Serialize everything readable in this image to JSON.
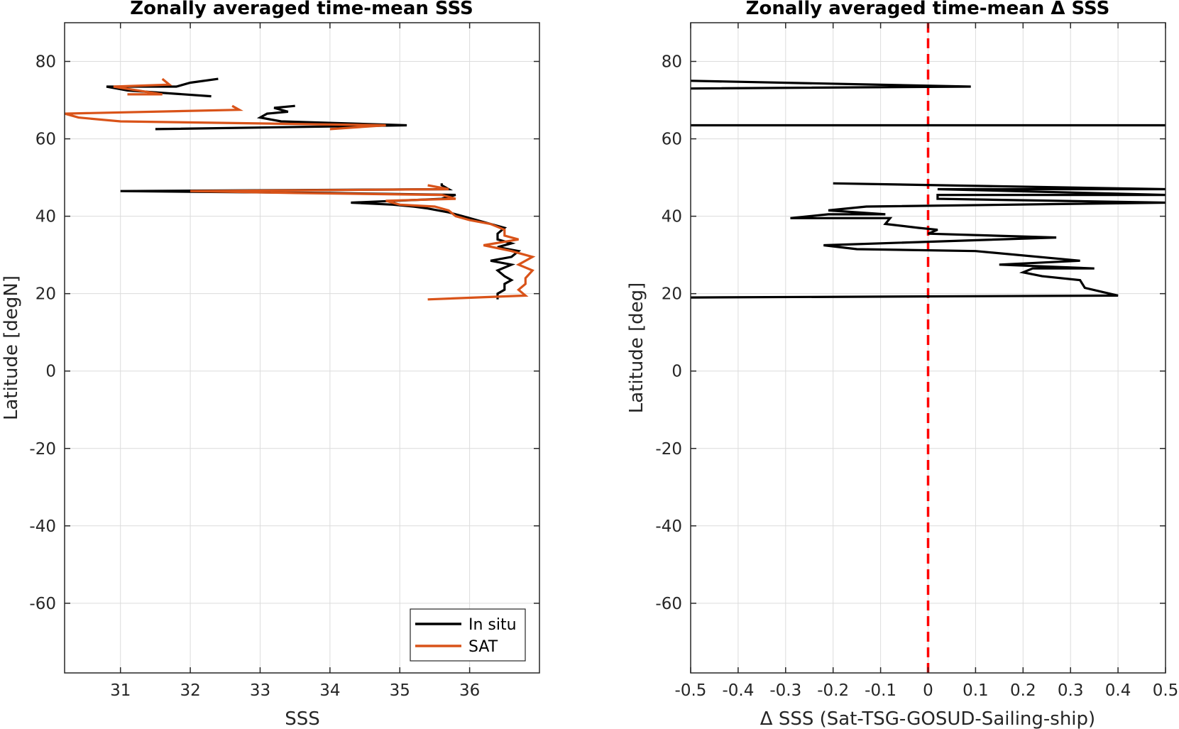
{
  "chart_data": [
    {
      "type": "line",
      "title": "Zonally averaged time-mean SSS",
      "xlabel": "SSS",
      "ylabel": "Latitude [degN]",
      "xlim": [
        30.2,
        37.0
      ],
      "ylim": [
        -78,
        90
      ],
      "xticks": [
        31,
        32,
        33,
        34,
        35,
        36
      ],
      "yticks": [
        -60,
        -40,
        -20,
        0,
        20,
        40,
        60,
        80
      ],
      "grid": true,
      "legend": "bottom-right",
      "series": [
        {
          "name": "In situ",
          "color": "#000000",
          "points": [
            [
              36.4,
              18.5
            ],
            [
              36.4,
              20.0
            ],
            [
              36.5,
              21.0
            ],
            [
              36.5,
              22.5
            ],
            [
              36.6,
              23.5
            ],
            [
              36.5,
              24.5
            ],
            [
              36.4,
              26.0
            ],
            [
              36.6,
              27.5
            ],
            [
              36.3,
              28.5
            ],
            [
              36.6,
              29.5
            ],
            [
              36.7,
              31.0
            ],
            [
              36.4,
              32.0
            ],
            [
              36.6,
              33.0
            ],
            [
              36.4,
              34.0
            ],
            [
              36.4,
              35.5
            ],
            [
              36.5,
              37.0
            ],
            [
              36.3,
              38.0
            ],
            [
              36.1,
              39.0
            ],
            [
              35.9,
              40.0
            ],
            [
              35.7,
              41.0
            ],
            [
              35.4,
              42.0
            ],
            [
              35.2,
              42.5
            ],
            [
              34.9,
              43.0
            ],
            [
              34.3,
              43.5
            ],
            [
              35.6,
              44.5
            ],
            [
              35.8,
              45.5
            ],
            [
              34.0,
              46.0
            ],
            [
              31.0,
              46.5
            ],
            [
              35.7,
              47.0
            ],
            [
              35.6,
              48.0
            ],
            [
              35.6,
              48.5
            ]
          ],
          "segment2": [
            [
              31.5,
              62.5
            ],
            [
              35.1,
              63.5
            ],
            [
              33.3,
              64.5
            ],
            [
              33.0,
              65.5
            ],
            [
              33.1,
              66.5
            ],
            [
              33.4,
              67.0
            ],
            [
              33.2,
              68.0
            ],
            [
              33.5,
              68.5
            ]
          ],
          "segment3": [
            [
              32.3,
              71.0
            ],
            [
              31.1,
              72.5
            ],
            [
              30.8,
              73.5
            ],
            [
              31.8,
              73.5
            ],
            [
              32.0,
              74.5
            ],
            [
              32.4,
              75.5
            ]
          ]
        },
        {
          "name": "SAT",
          "color": "#d95319",
          "points": [
            [
              35.4,
              18.5
            ],
            [
              36.8,
              19.5
            ],
            [
              36.7,
              21.0
            ],
            [
              36.8,
              22.5
            ],
            [
              36.8,
              24.0
            ],
            [
              36.9,
              26.0
            ],
            [
              36.7,
              27.5
            ],
            [
              36.9,
              29.5
            ],
            [
              36.6,
              31.0
            ],
            [
              36.2,
              32.5
            ],
            [
              36.7,
              34.0
            ],
            [
              36.5,
              35.0
            ],
            [
              36.5,
              36.5
            ],
            [
              36.3,
              38.0
            ],
            [
              36.0,
              39.0
            ],
            [
              35.8,
              40.0
            ],
            [
              35.7,
              41.5
            ],
            [
              35.5,
              42.5
            ],
            [
              35.0,
              43.0
            ],
            [
              34.8,
              44.0
            ],
            [
              35.8,
              44.5
            ],
            [
              35.6,
              45.5
            ],
            [
              33.5,
              46.0
            ],
            [
              32.0,
              46.5
            ],
            [
              35.7,
              47.0
            ],
            [
              35.4,
              48.0
            ]
          ],
          "segment2": [
            [
              34.0,
              62.5
            ],
            [
              34.8,
              63.5
            ],
            [
              31.0,
              64.5
            ],
            [
              30.4,
              65.5
            ],
            [
              30.2,
              66.5
            ],
            [
              32.7,
              67.5
            ],
            [
              32.6,
              68.5
            ]
          ],
          "segment3": [
            [
              31.6,
              71.5
            ],
            [
              31.1,
              71.5
            ],
            [
              31.6,
              71.5
            ],
            [
              30.9,
              73.5
            ],
            [
              31.7,
              74.0
            ],
            [
              31.6,
              75.5
            ]
          ]
        }
      ]
    },
    {
      "type": "line",
      "title": "Zonally averaged time-mean Δ SSS",
      "xlabel": "Δ SSS (Sat-TSG-GOSUD-Sailing-ship)",
      "ylabel": "Latitude [deg]",
      "xlim": [
        -0.5,
        0.5
      ],
      "ylim": [
        -78,
        90
      ],
      "xticks": [
        "-0.5",
        "-0.4",
        "-0.3",
        "-0.2",
        "-0.1",
        "0",
        "0.1",
        "0.2",
        "0.3",
        "0.4",
        "0.5"
      ],
      "yticks": [
        -60,
        -40,
        -20,
        0,
        20,
        40,
        60,
        80
      ],
      "grid": true,
      "reference_line": {
        "x": 0,
        "color": "#ff0000",
        "style": "dashed"
      },
      "series": [
        {
          "color": "#000000",
          "points": [
            [
              -0.5,
              19.0
            ],
            [
              0.4,
              19.5
            ],
            [
              0.33,
              21.5
            ],
            [
              0.32,
              23.5
            ],
            [
              0.24,
              24.5
            ],
            [
              0.2,
              25.5
            ],
            [
              0.22,
              26.5
            ],
            [
              0.35,
              26.5
            ],
            [
              0.15,
              27.5
            ],
            [
              0.32,
              28.5
            ],
            [
              0.1,
              31.0
            ],
            [
              -0.15,
              31.5
            ],
            [
              -0.22,
              32.5
            ],
            [
              0.27,
              34.5
            ],
            [
              0.0,
              35.5
            ],
            [
              0.02,
              36.5
            ],
            [
              -0.02,
              37.0
            ],
            [
              -0.09,
              38.0
            ],
            [
              -0.08,
              39.5
            ],
            [
              -0.29,
              39.5
            ],
            [
              -0.21,
              40.5
            ],
            [
              -0.09,
              40.5
            ],
            [
              -0.21,
              41.5
            ],
            [
              -0.13,
              42.5
            ],
            [
              0.5,
              43.5
            ],
            [
              0.02,
              44.5
            ],
            [
              0.02,
              45.5
            ],
            [
              0.5,
              45.5
            ],
            [
              0.02,
              47.0
            ],
            [
              0.5,
              47.0
            ],
            [
              -0.2,
              48.5
            ]
          ],
          "segment2": [
            [
              -0.5,
              63.5
            ],
            [
              0.5,
              63.5
            ]
          ],
          "segment3": [
            [
              -0.5,
              73.0
            ],
            [
              0.09,
              73.5
            ],
            [
              -0.5,
              75.0
            ]
          ]
        }
      ]
    }
  ]
}
